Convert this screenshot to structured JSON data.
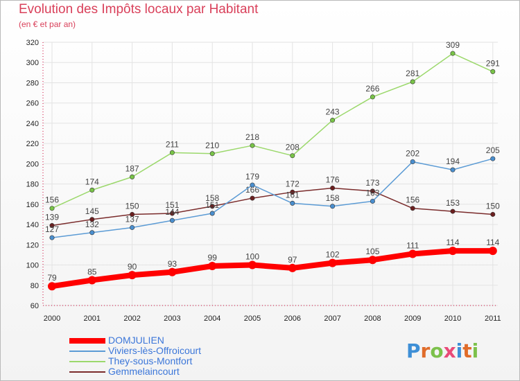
{
  "header": {
    "title": "Evolution des Impôts locaux par Habitant",
    "subtitle": "(en € et par an)"
  },
  "logo": {
    "text": "Proxiti",
    "colors": [
      "#3e8fd6",
      "#e06c2a",
      "#7cc14b",
      "#e94a78",
      "#3e8fd6",
      "#e06c2a",
      "#7cc14b"
    ]
  },
  "colors": {
    "title": "#d9405a",
    "axis": "#cc0033",
    "grid": "#e3e3e3",
    "tick_text": "#222222",
    "label_text": "#444444",
    "legend_text": "#3b76d9"
  },
  "chart_data": {
    "type": "line",
    "title": "Evolution des Impôts locaux par Habitant",
    "subtitle": "(en € et par an)",
    "x": [
      "2000",
      "2001",
      "2002",
      "2003",
      "2004",
      "2005",
      "2006",
      "2007",
      "2008",
      "2009",
      "2010",
      "2011"
    ],
    "ylim": [
      60,
      320
    ],
    "yticks": [
      60,
      80,
      100,
      120,
      140,
      160,
      180,
      200,
      220,
      240,
      260,
      280,
      300,
      320
    ],
    "grid": true,
    "legend_position": "bottom-left",
    "series": [
      {
        "name": "DOMJULIEN",
        "color": "#ff0000",
        "marker": "#ff0000",
        "thick": true,
        "values": [
          79,
          85,
          90,
          93,
          99,
          100,
          97,
          102,
          105,
          111,
          114,
          114
        ]
      },
      {
        "name": "Viviers-lès-Offroicourt",
        "color": "#5b9bd5",
        "marker": "#4a8fcf",
        "thick": false,
        "values": [
          127,
          132,
          137,
          144,
          151,
          179,
          161,
          158,
          163,
          202,
          194,
          205
        ]
      },
      {
        "name": "They-sous-Montfort",
        "color": "#9bd86b",
        "marker": "#79c448",
        "thick": false,
        "values": [
          156,
          174,
          187,
          211,
          210,
          218,
          208,
          243,
          266,
          281,
          309,
          291
        ]
      },
      {
        "name": "Gemmelaincourt",
        "color": "#7a2b2b",
        "marker": "#6b1f1f",
        "thick": false,
        "values": [
          139,
          145,
          150,
          151,
          158,
          166,
          172,
          176,
          173,
          156,
          153,
          150
        ]
      }
    ]
  }
}
